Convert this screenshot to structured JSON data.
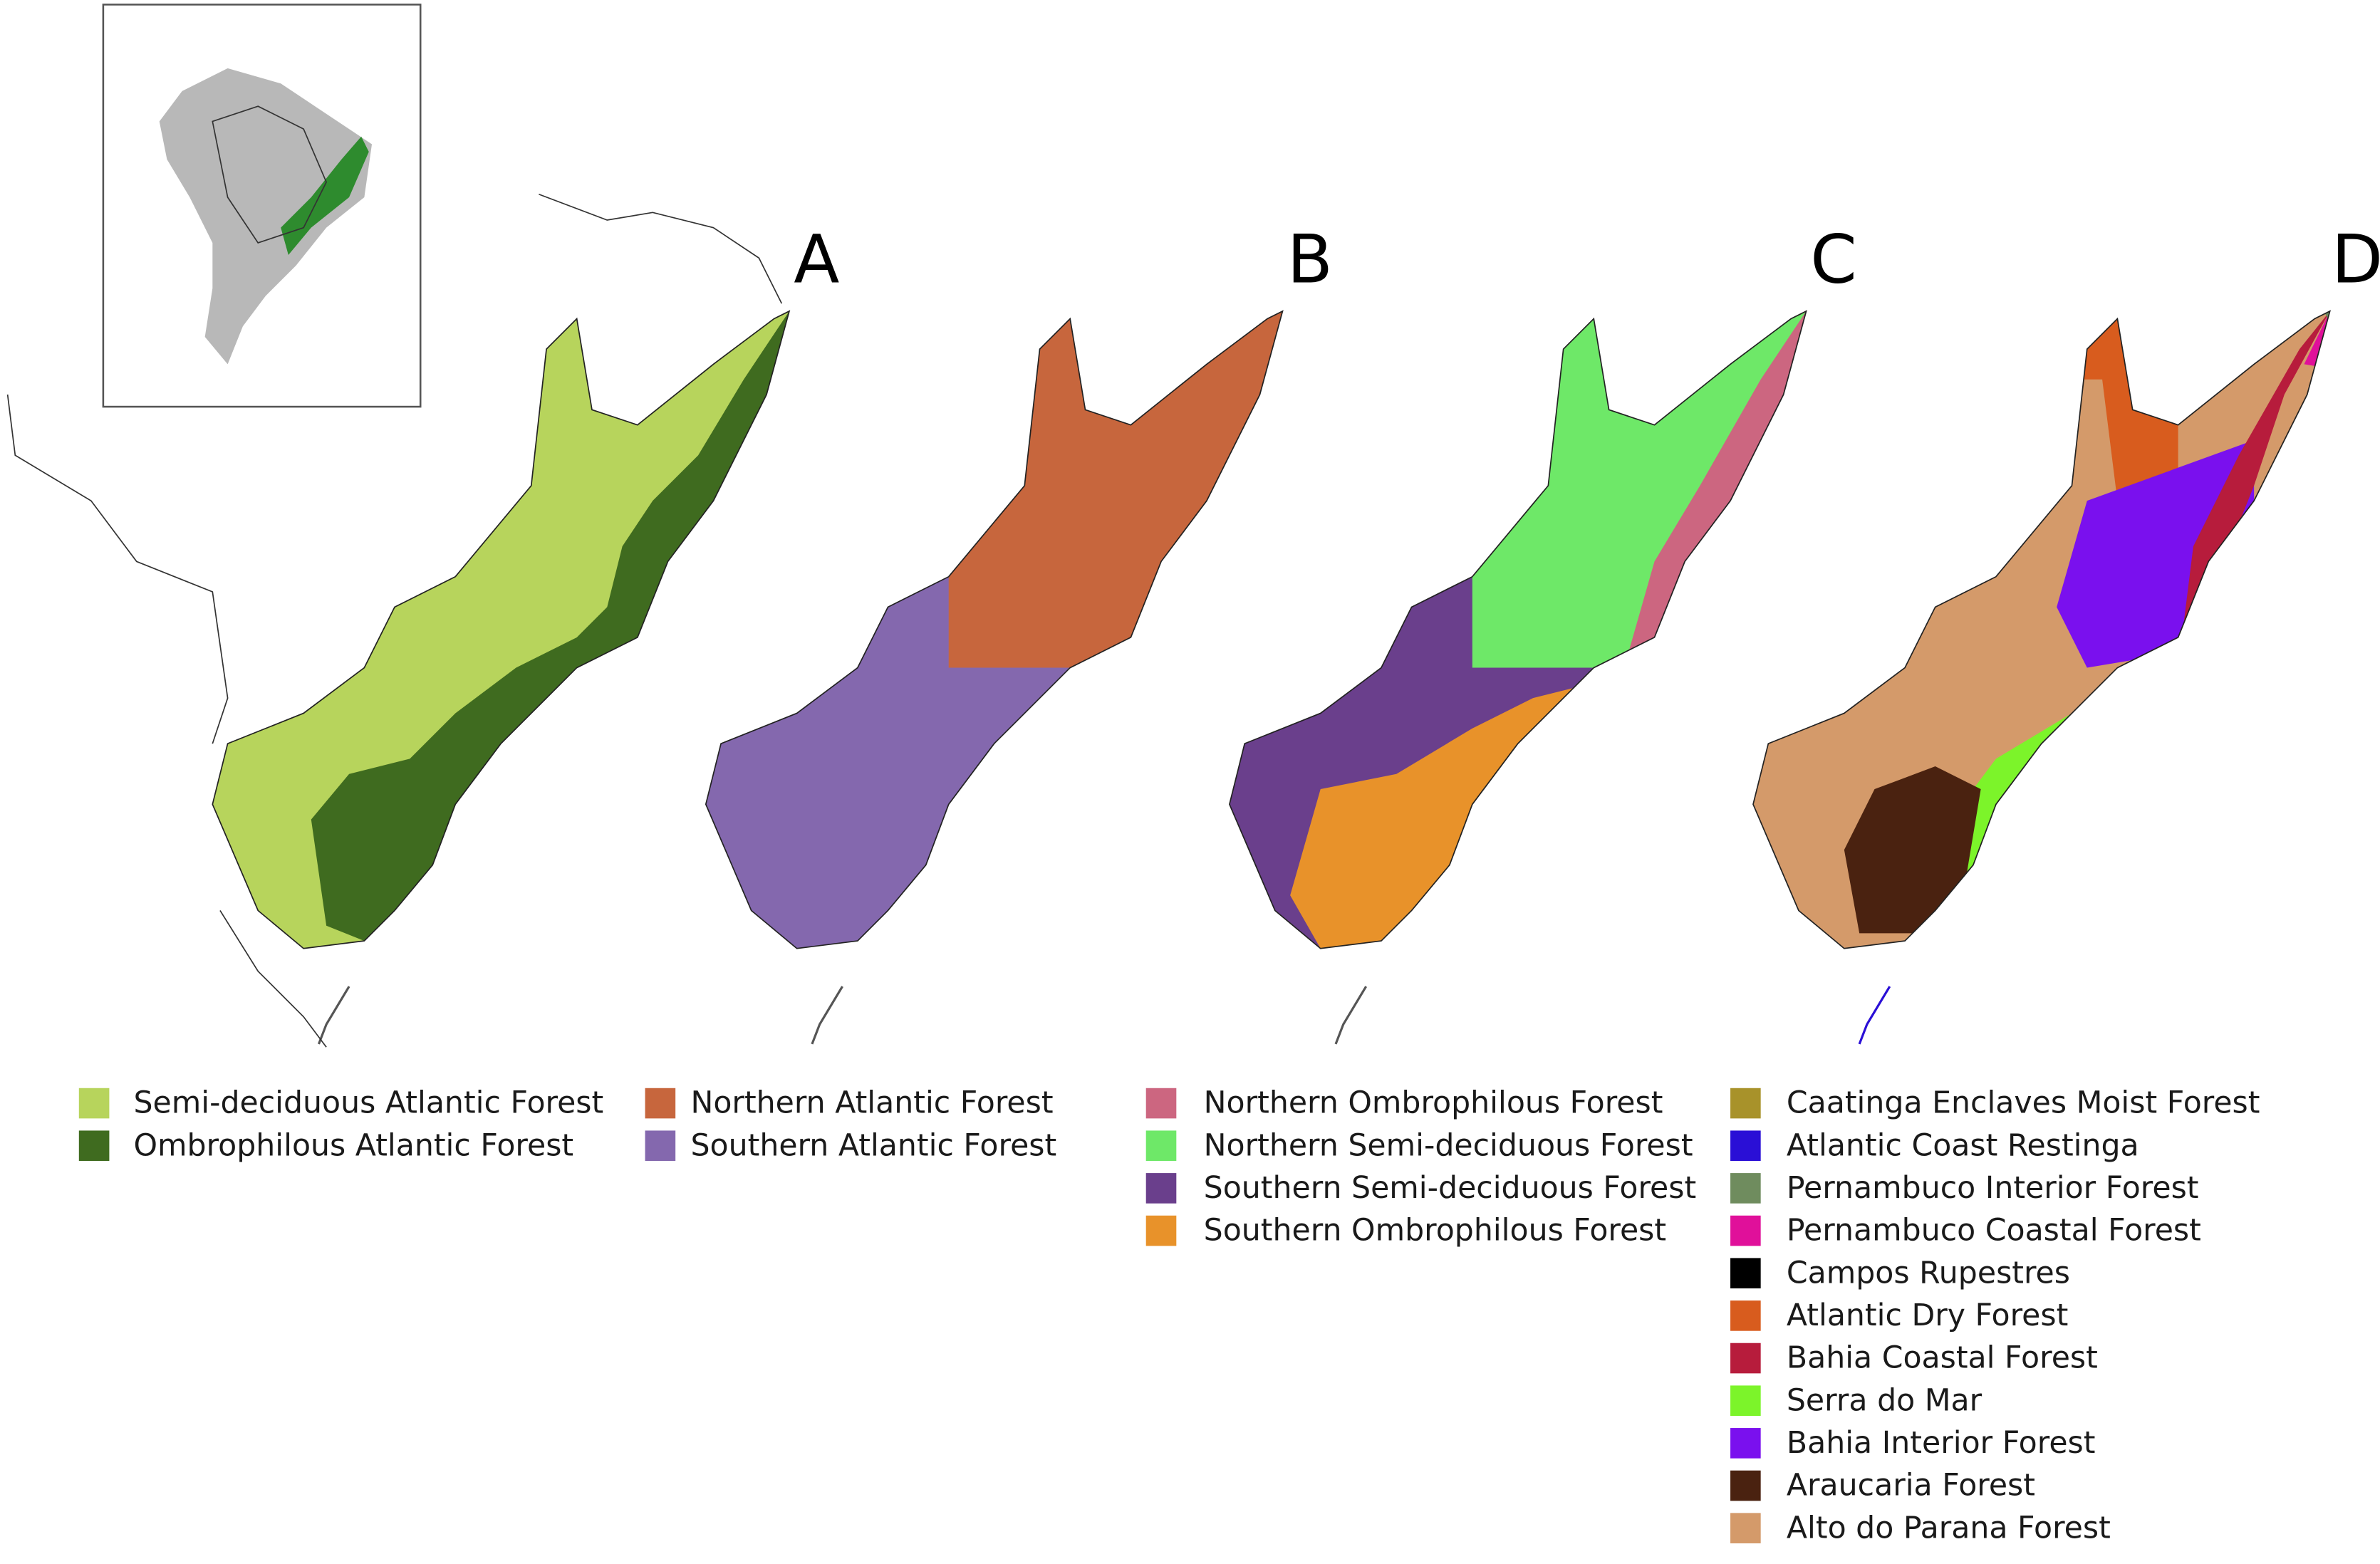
{
  "panels": [
    {
      "label": "A"
    },
    {
      "label": "B"
    },
    {
      "label": "C"
    },
    {
      "label": "D"
    }
  ],
  "legends": [
    {
      "items": [
        {
          "label": "Semi-deciduous Atlantic Forest",
          "color": "#b7d45c"
        },
        {
          "label": "Ombrophilous Atlantic Forest",
          "color": "#3f6b1f"
        }
      ]
    },
    {
      "items": [
        {
          "label": "Northern Atlantic Forest",
          "color": "#c7663d"
        },
        {
          "label": "Southern Atlantic Forest",
          "color": "#8468ae"
        }
      ]
    },
    {
      "items": [
        {
          "label": "Northern Ombrophilous Forest",
          "color": "#cc6680"
        },
        {
          "label": "Northern Semi-deciduous Forest",
          "color": "#6ee868"
        },
        {
          "label": "Southern Semi-deciduous Forest",
          "color": "#6a3f8c"
        },
        {
          "label": "Southern Ombrophilous Forest",
          "color": "#e8922a"
        }
      ]
    },
    {
      "items": [
        {
          "label": "Caatinga Enclaves Moist Forest",
          "color": "#a8922a"
        },
        {
          "label": "Atlantic Coast Restinga",
          "color": "#2a0fd6"
        },
        {
          "label": "Pernambuco Interior Forest",
          "color": "#6f8c5e"
        },
        {
          "label": "Pernambuco Coastal Forest",
          "color": "#e0109a"
        },
        {
          "label": "Campos Rupestres",
          "color": "#000000"
        },
        {
          "label": "Atlantic Dry Forest",
          "color": "#d85c1e"
        },
        {
          "label": "Bahia Coastal Forest",
          "color": "#b71c3c"
        },
        {
          "label": "Serra do Mar",
          "color": "#7cf42a"
        },
        {
          "label": "Bahia Interior Forest",
          "color": "#7a10ee"
        },
        {
          "label": "Araucaria Forest",
          "color": "#4a2210"
        },
        {
          "label": "Alto do Parana Forest",
          "color": "#d49a6a"
        }
      ]
    }
  ]
}
